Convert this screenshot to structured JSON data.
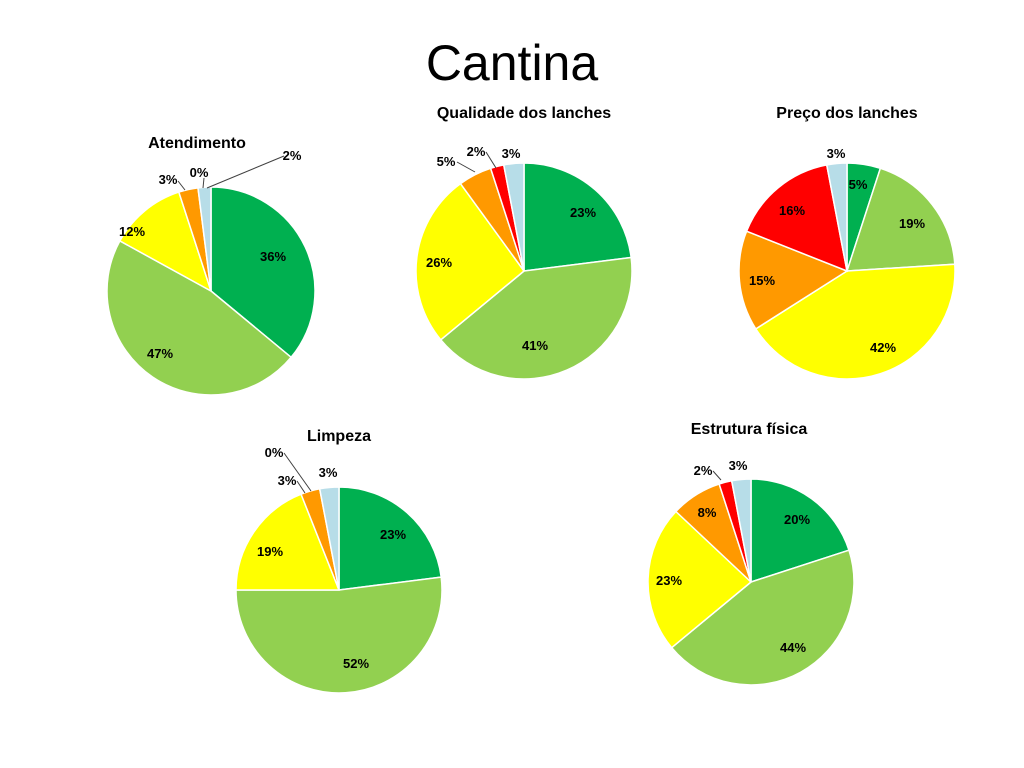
{
  "slide": {
    "title": "Cantina"
  },
  "chart_data": [
    {
      "type": "pie",
      "title": "Atendimento",
      "categories": [
        "Green",
        "Light green",
        "Yellow",
        "Orange",
        "Red",
        "Light blue"
      ],
      "values": [
        36,
        47,
        12,
        3,
        0,
        2
      ],
      "labels": [
        "36%",
        "47%",
        "12%",
        "3%",
        "0%",
        "2%"
      ],
      "colors": [
        "#00b050",
        "#92d050",
        "#ffff00",
        "#ff9900",
        "#ff0000",
        "#b7dde8"
      ]
    },
    {
      "type": "pie",
      "title": "Qualidade dos lanches",
      "categories": [
        "Green",
        "Light green",
        "Yellow",
        "Orange",
        "Red",
        "Light blue"
      ],
      "values": [
        23,
        41,
        26,
        5,
        2,
        3
      ],
      "labels": [
        "23%",
        "41%",
        "26%",
        "5%",
        "2%",
        "3%"
      ],
      "colors": [
        "#00b050",
        "#92d050",
        "#ffff00",
        "#ff9900",
        "#ff0000",
        "#b7dde8"
      ]
    },
    {
      "type": "pie",
      "title": "Preço dos lanches",
      "categories": [
        "Green",
        "Light green",
        "Yellow",
        "Orange",
        "Red",
        "Light blue"
      ],
      "values": [
        5,
        19,
        42,
        15,
        16,
        3
      ],
      "labels": [
        "5%",
        "19%",
        "42%",
        "15%",
        "16%",
        "3%"
      ],
      "colors": [
        "#00b050",
        "#92d050",
        "#ffff00",
        "#ff9900",
        "#ff0000",
        "#b7dde8"
      ]
    },
    {
      "type": "pie",
      "title": "Limpeza",
      "categories": [
        "Green",
        "Light green",
        "Yellow",
        "Orange",
        "Red",
        "Light blue"
      ],
      "values": [
        23,
        52,
        19,
        3,
        0,
        3
      ],
      "labels": [
        "23%",
        "52%",
        "19%",
        "3%",
        "0%",
        "3%"
      ],
      "colors": [
        "#00b050",
        "#92d050",
        "#ffff00",
        "#ff9900",
        "#ff0000",
        "#b7dde8"
      ]
    },
    {
      "type": "pie",
      "title": "Estrutura física",
      "categories": [
        "Green",
        "Light green",
        "Yellow",
        "Orange",
        "Red",
        "Light blue"
      ],
      "values": [
        20,
        44,
        23,
        8,
        2,
        3
      ],
      "labels": [
        "20%",
        "44%",
        "23%",
        "8%",
        "2%",
        "3%"
      ],
      "colors": [
        "#00b050",
        "#92d050",
        "#ffff00",
        "#ff9900",
        "#ff0000",
        "#b7dde8"
      ]
    }
  ]
}
